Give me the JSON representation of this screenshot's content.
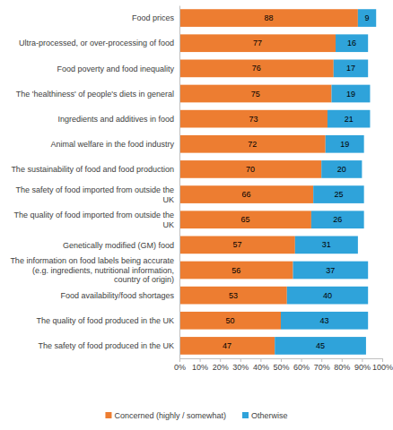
{
  "chart_data": {
    "type": "bar",
    "orientation": "horizontal",
    "stacked": true,
    "data_labels": true,
    "grid": false,
    "legend": "bottom",
    "categories": [
      "Food prices",
      "Ultra-processed, or over-processing of food",
      "Food poverty and food inequality",
      "The 'healthiness' of people's diets in general",
      "Ingredients and additives in food",
      "Animal welfare in the food industry",
      "The sustainability of food and food production",
      "The safety of food imported from outside the UK",
      "The quality of food imported from outside the UK",
      "Genetically modified (GM) food",
      "The information on food labels being accurate (e.g. ingredients, nutritional information, country of origin)",
      "Food availability/food shortages",
      "The quality of food produced in the UK",
      "The safety of food produced in the UK"
    ],
    "series": [
      {
        "name": "Concerned (highly / somewhat)",
        "color": "#ED7D31",
        "values": [
          88,
          77,
          76,
          75,
          73,
          72,
          70,
          66,
          65,
          57,
          56,
          53,
          50,
          47
        ]
      },
      {
        "name": "Otherwise",
        "color": "#2FA3DA",
        "values": [
          9,
          16,
          17,
          19,
          21,
          19,
          20,
          25,
          26,
          31,
          37,
          40,
          43,
          45
        ]
      }
    ],
    "xlim": [
      0,
      100
    ],
    "xticks": [
      {
        "value": 0,
        "label": "0%"
      },
      {
        "value": 10,
        "label": "10%"
      },
      {
        "value": 20,
        "label": "20%"
      },
      {
        "value": 30,
        "label": "30%"
      },
      {
        "value": 40,
        "label": "40%"
      },
      {
        "value": 50,
        "label": "50%"
      },
      {
        "value": 60,
        "label": "60%"
      },
      {
        "value": 70,
        "label": "70%"
      },
      {
        "value": 80,
        "label": "80%"
      },
      {
        "value": 90,
        "label": "90%"
      },
      {
        "value": 100,
        "label": "100%"
      }
    ]
  }
}
